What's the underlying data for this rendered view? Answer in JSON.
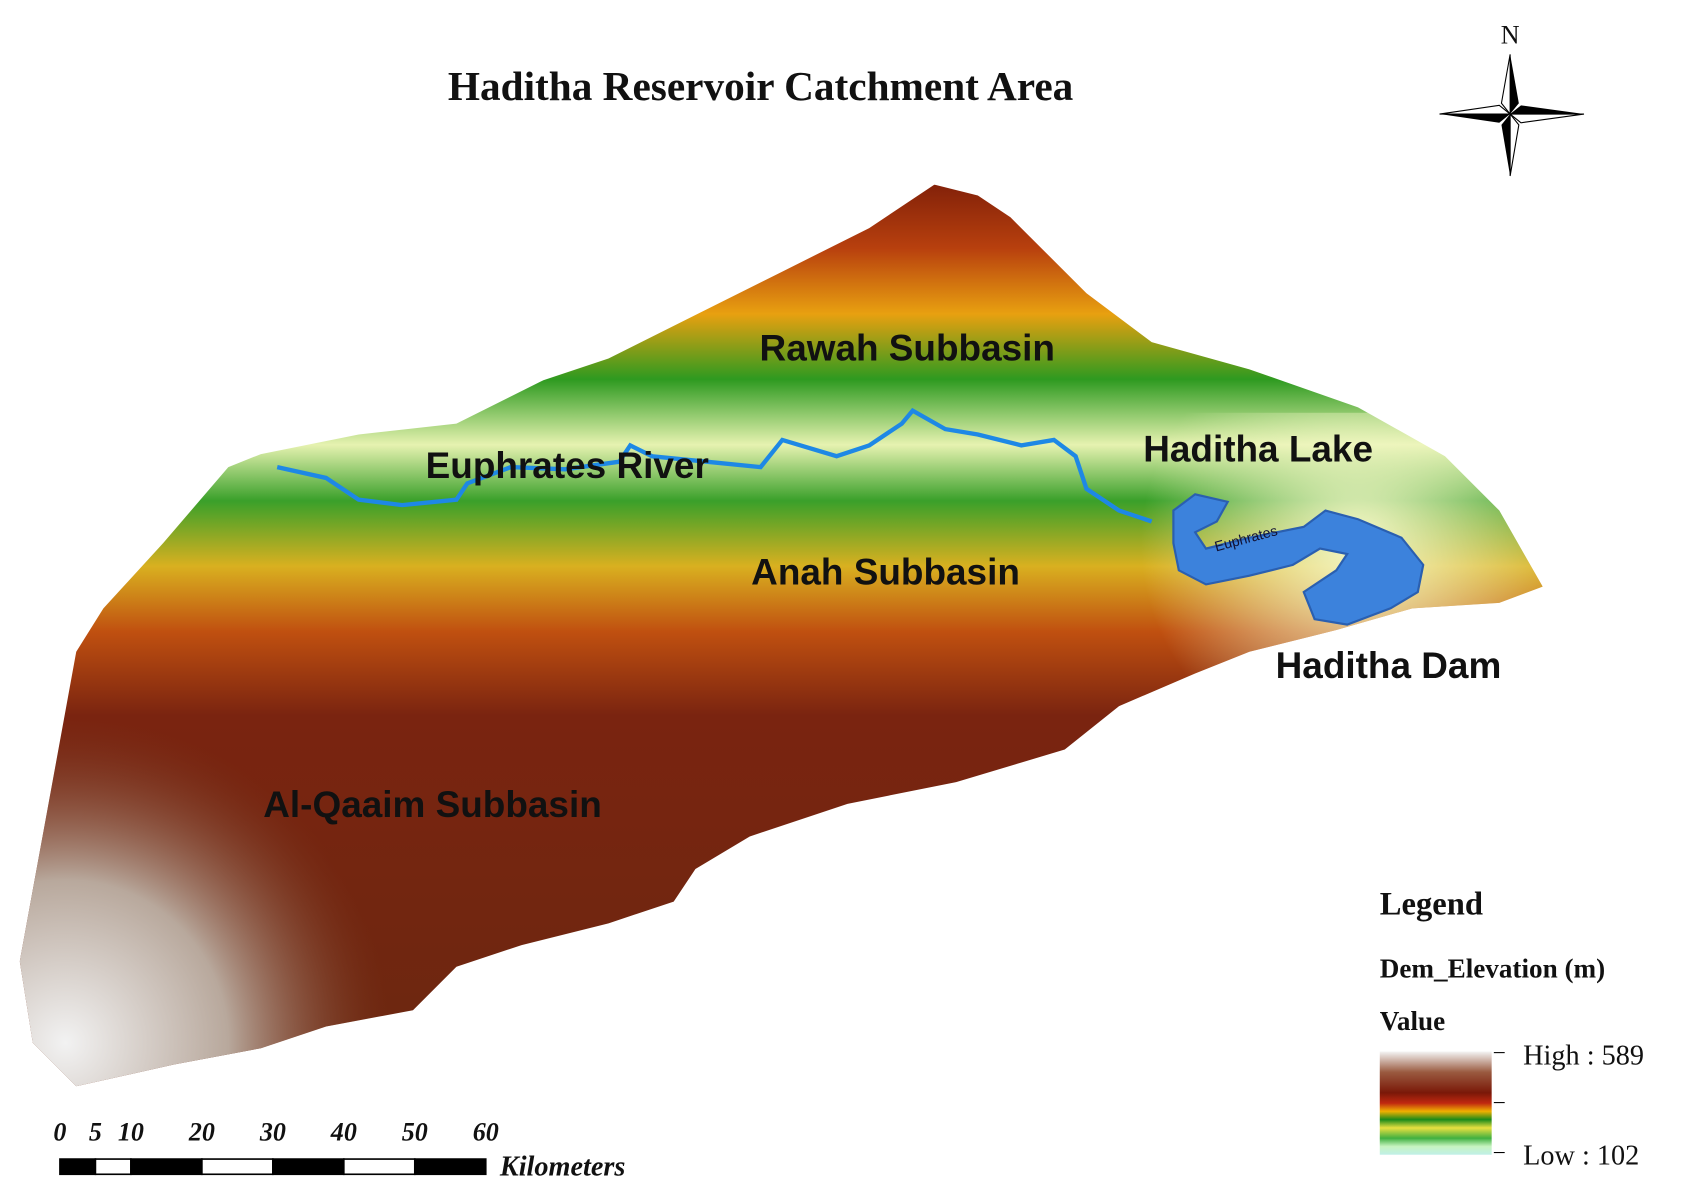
{
  "title": "Haditha Reservoir Catchment Area",
  "north_arrow": "N",
  "map_labels": [
    "Rawah Subbasin",
    "Euphrates River",
    "Haditha Lake",
    "Anah Subbasin",
    "Haditha Dam",
    "Al-Qaaim Subbasin",
    "Euphrates"
  ],
  "legend": {
    "title": "Legend",
    "field": "Dem_Elevation (m)",
    "value_header": "Value",
    "high": "High : 589",
    "low": "Low : 102"
  },
  "scale_bar": {
    "ticks": [
      0,
      5,
      10,
      20,
      30,
      40,
      50,
      60
    ],
    "unit": "Kilometers"
  }
}
